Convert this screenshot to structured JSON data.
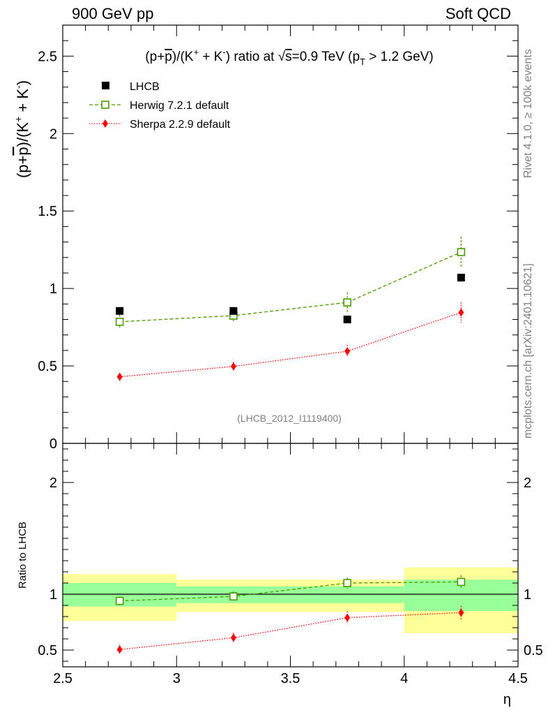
{
  "header": {
    "left": "900 GeV pp",
    "right": "Soft QCD"
  },
  "side_labels": {
    "rivet": "Rivet 4.1.0, ≥ 100k events",
    "mcplots": "mcplots.cern.ch [arXiv:2401.10621]"
  },
  "chart_data": [
    {
      "type": "scatter",
      "panel": "main",
      "title": "(p+p̄)/(K⁺ + K⁻) ratio at √s=0.9 TeV (p_T > 1.2 GeV)",
      "title_parts": {
        "a": "(p+",
        "pbar": "p",
        "b": ")/(K",
        "kp": "+",
        "c": " + K",
        "km": "-",
        "d": ") ratio at ",
        "sqrt": "√",
        "s": "s",
        "e": "=0.9 TeV (p",
        "T": "T",
        "f": " > 1.2 GeV)"
      },
      "ylabel": "(p+p̄)/(K⁺ + K⁻)",
      "ylabel_parts": {
        "a": "(p+",
        "pbar": "p",
        "b": ")/(K",
        "kp": "+",
        "c": " + K",
        "km": "-",
        "d": ")"
      },
      "xlim": [
        2.5,
        4.5
      ],
      "ylim": [
        0,
        2.7
      ],
      "yticks": [
        0,
        0.5,
        1,
        1.5,
        2,
        2.5
      ],
      "ytick_labels": [
        "0",
        "0.5",
        "1",
        "1.5",
        "2",
        "2.5"
      ],
      "watermark": "(LHCB_2012_I1119400)",
      "legend": [
        "LHCB",
        "Herwig 7.2.1 default",
        "Sherpa 2.2.9 default"
      ],
      "x": [
        2.75,
        3.25,
        3.75,
        4.25
      ],
      "x_bins": [
        [
          2.5,
          3.0
        ],
        [
          3.0,
          3.5
        ],
        [
          3.5,
          4.0
        ],
        [
          4.0,
          4.5
        ]
      ],
      "series": [
        {
          "name": "LHCB",
          "color": "#000000",
          "marker": "filled-square",
          "values": [
            0.855,
            0.855,
            0.8,
            1.07
          ],
          "errors": [
            0.01,
            0.01,
            0.01,
            0.01
          ]
        },
        {
          "name": "Herwig 7.2.1 default",
          "color": "#4a9a00",
          "marker": "open-square",
          "line": "dashed",
          "values": [
            0.785,
            0.825,
            0.91,
            1.235
          ],
          "errors": [
            0.045,
            0.045,
            0.065,
            0.1
          ]
        },
        {
          "name": "Sherpa 2.2.9 default",
          "color": "#ff0000",
          "marker": "diamond",
          "line": "dotted",
          "values": [
            0.43,
            0.497,
            0.595,
            0.845
          ],
          "errors": [
            0.025,
            0.03,
            0.04,
            0.065
          ]
        }
      ]
    },
    {
      "type": "scatter",
      "panel": "ratio",
      "ylabel": "Ratio to LHCB",
      "xlabel": "η",
      "xlim": [
        2.5,
        4.5
      ],
      "xticks": [
        2.5,
        3,
        3.5,
        4,
        4.5
      ],
      "xtick_labels": [
        "2.5",
        "3",
        "3.5",
        "4",
        "4.5"
      ],
      "ylim": [
        0.35,
        2.35
      ],
      "yticks": [
        0.5,
        1,
        2
      ],
      "ytick_labels": [
        "0.5",
        "1",
        "2"
      ],
      "reference_line": 1,
      "bands": [
        {
          "x": [
            2.5,
            3.0
          ],
          "inner": [
            0.89,
            1.1
          ],
          "outer": [
            0.76,
            1.18
          ]
        },
        {
          "x": [
            3.0,
            3.5
          ],
          "inner": [
            0.92,
            1.07
          ],
          "outer": [
            0.84,
            1.13
          ]
        },
        {
          "x": [
            3.5,
            4.0
          ],
          "inner": [
            0.92,
            1.07
          ],
          "outer": [
            0.84,
            1.13
          ]
        },
        {
          "x": [
            4.0,
            4.5
          ],
          "inner": [
            0.85,
            1.13
          ],
          "outer": [
            0.65,
            1.24
          ]
        }
      ],
      "x": [
        2.75,
        3.25,
        3.75,
        4.25
      ],
      "series": [
        {
          "name": "Herwig 7.2.1 default",
          "color": "#4a9a00",
          "marker": "open-square",
          "line": "dashed",
          "values": [
            0.94,
            0.98,
            1.1,
            1.11
          ],
          "errors": [
            0.04,
            0.045,
            0.05,
            0.06
          ]
        },
        {
          "name": "Sherpa 2.2.9 default",
          "color": "#ff0000",
          "marker": "diamond",
          "line": "dotted",
          "values": [
            0.505,
            0.61,
            0.79,
            0.835
          ],
          "errors": [
            0.04,
            0.045,
            0.055,
            0.06
          ]
        }
      ]
    }
  ],
  "colors": {
    "band_inner": "#99ff99",
    "band_outer": "#ffff99"
  }
}
